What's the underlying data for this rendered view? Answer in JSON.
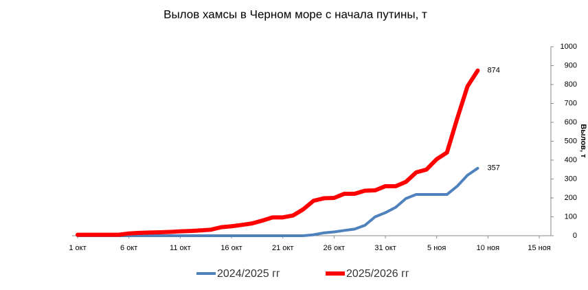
{
  "chart_data": {
    "type": "line",
    "title": "Вылов хамсы в Черном море с начала путины, т",
    "y_axis_label": "Вылов, т",
    "categories": [
      "1 окт",
      null,
      null,
      null,
      null,
      "6 окт",
      null,
      null,
      null,
      null,
      "11 окт",
      null,
      null,
      null,
      null,
      "16 окт",
      null,
      null,
      null,
      null,
      "21 окт",
      null,
      null,
      null,
      null,
      "26 окт",
      null,
      null,
      null,
      null,
      "31 окт",
      null,
      null,
      null,
      null,
      "5 ноя",
      null,
      null,
      null,
      null,
      "10 ноя",
      null,
      null,
      null,
      null,
      "15 ноя",
      null
    ],
    "series": [
      {
        "name": "2024/2025 гг",
        "color": "#4f81bd",
        "values": [
          0,
          0,
          0,
          0,
          0,
          0,
          0,
          0,
          0,
          0,
          0,
          0,
          0,
          0,
          0,
          0,
          0,
          0,
          0,
          0,
          0,
          0,
          0,
          5,
          15,
          20,
          28,
          35,
          55,
          100,
          122,
          150,
          197,
          218,
          218,
          218,
          218,
          262,
          320,
          357,
          null,
          null,
          null,
          null,
          null,
          null,
          null
        ]
      },
      {
        "name": "2025/2026 гг",
        "color": "#ff0000",
        "values": [
          5,
          5,
          5,
          5,
          5,
          12,
          15,
          17,
          18,
          20,
          23,
          25,
          28,
          32,
          45,
          50,
          57,
          65,
          80,
          97,
          97,
          107,
          140,
          185,
          198,
          200,
          222,
          222,
          238,
          240,
          262,
          262,
          285,
          335,
          350,
          405,
          440,
          620,
          790,
          874,
          null,
          null,
          null,
          null,
          null,
          null,
          null
        ]
      }
    ],
    "ylim": [
      0,
      1000
    ],
    "yticks": [
      0,
      100,
      200,
      300,
      400,
      500,
      600,
      700,
      800,
      900,
      1000
    ],
    "y_axis_side": "right",
    "grid": false,
    "legend": "bottom"
  }
}
